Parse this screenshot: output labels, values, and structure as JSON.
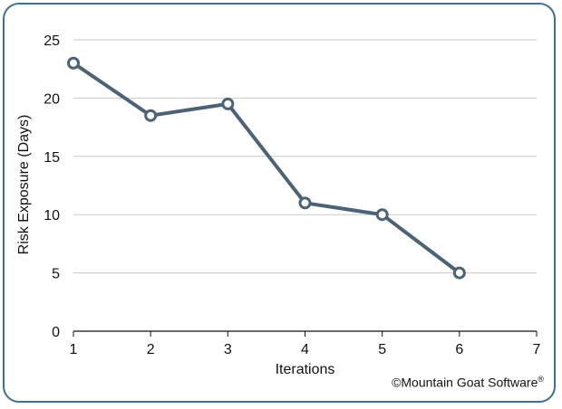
{
  "chart_data": {
    "type": "line",
    "xlabel": "Iterations",
    "ylabel": "Risk Exposure (Days)",
    "xlim": [
      1,
      7
    ],
    "ylim": [
      0,
      25
    ],
    "xticks": [
      1,
      2,
      3,
      4,
      5,
      6,
      7
    ],
    "yticks": [
      0,
      5,
      10,
      15,
      20,
      25
    ],
    "grid": "horizontal",
    "series": [
      {
        "x": [
          1,
          2,
          3,
          4,
          5,
          6
        ],
        "y": [
          23,
          18.5,
          19.5,
          11,
          10,
          5
        ]
      }
    ],
    "colors": {
      "line": "#4c6275",
      "marker_fill": "#ffffff",
      "grid": "#c8c8c8",
      "frame": "#3d6f9e"
    }
  },
  "footer": {
    "copyright": "©Mountain Goat Software",
    "registered_mark": "®"
  }
}
